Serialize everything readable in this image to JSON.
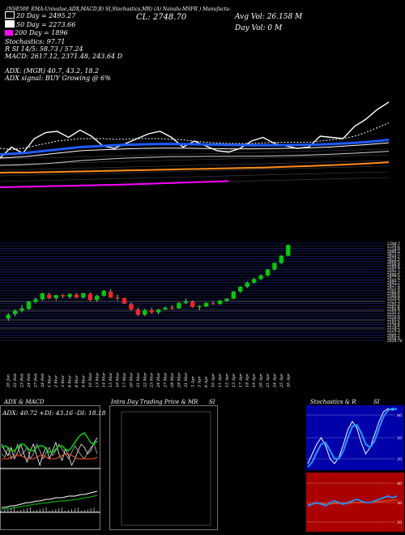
{
  "header": {
    "topline": "(NSE500_EMA:Univalue,ADX,MACD,B) SI,Stochastics,MR) (A) Nanalu-MSFR ) Manufactu-",
    "cl": "CL: 2748.70",
    "avg_vol": "Avg Vol: 26.158  M",
    "day_vol": "Day Vol: 0  M"
  },
  "ma_legend": [
    {
      "label": "20  Day = 2495.27",
      "color": "#ffffff"
    },
    {
      "label": "50  Day = 2273.66",
      "color": "#ffffff"
    },
    {
      "label": "200  Day = 1896",
      "color": "#ff00ff"
    }
  ],
  "indicator_lines": [
    "Stochastics: 97.71",
    "R          SI 14/5: 58.73 / 57.24",
    "MACD: 2617.12, 2371.48, 243.64  D",
    "",
    "ADX:                      (MGR) 40.7, 43.2, 18.2",
    "ADX  signal:                         BUY Growing @ 6%"
  ],
  "colors": {
    "up": "#00cc00",
    "down": "#ff2222",
    "ma20": "#1e5bff",
    "ema": "#ff8c1a",
    "ma200": "#ff00ff",
    "stoch_bg": "#0000aa",
    "rsi_bg": "#aa0000"
  },
  "chart_data": [
    {
      "type": "candlestick",
      "title": "",
      "x": [
        "20 Jan",
        "22 Feb",
        "23 Feb",
        "24 Feb",
        "27 Feb",
        "28 Feb",
        "1 Mar",
        "2 Mar",
        "3 Mar",
        "6 Mar",
        "8 Mar",
        "9 Mar",
        "10 Mar",
        "13 Mar",
        "14 Mar",
        "15 Mar",
        "16 Mar",
        "17 Mar",
        "20 Mar",
        "21 Mar",
        "22 Mar",
        "23 Mar",
        "24 Mar",
        "27 Mar",
        "28 Mar",
        "29 Mar",
        "31 Mar",
        "3 Apr",
        "5 Apr",
        "6 Apr",
        "10 Apr",
        "11 Apr",
        "12 Apr",
        "13 Apr",
        "17 Apr",
        "18 Apr",
        "19 Apr",
        "20 Apr",
        "21 Apr",
        "24 Apr",
        "25 Apr",
        "26 Apr"
      ],
      "ohlc": [
        [
          2130,
          2175,
          2110,
          2160
        ],
        [
          2165,
          2205,
          2150,
          2195
        ],
        [
          2195,
          2240,
          2180,
          2215
        ],
        [
          2210,
          2275,
          2200,
          2270
        ],
        [
          2268,
          2305,
          2255,
          2290
        ],
        [
          2290,
          2345,
          2280,
          2340
        ],
        [
          2330,
          2345,
          2290,
          2300
        ],
        [
          2300,
          2330,
          2280,
          2325
        ],
        [
          2325,
          2335,
          2300,
          2315
        ],
        [
          2310,
          2340,
          2295,
          2335
        ],
        [
          2330,
          2340,
          2300,
          2305
        ],
        [
          2305,
          2345,
          2295,
          2340
        ],
        [
          2335,
          2345,
          2275,
          2285
        ],
        [
          2285,
          2330,
          2270,
          2320
        ],
        [
          2320,
          2370,
          2310,
          2360
        ],
        [
          2355,
          2375,
          2300,
          2305
        ],
        [
          2305,
          2330,
          2280,
          2300
        ],
        [
          2300,
          2305,
          2250,
          2255
        ],
        [
          2250,
          2265,
          2195,
          2205
        ],
        [
          2205,
          2220,
          2150,
          2160
        ],
        [
          2160,
          2210,
          2150,
          2200
        ],
        [
          2200,
          2220,
          2170,
          2180
        ],
        [
          2180,
          2210,
          2165,
          2205
        ],
        [
          2205,
          2230,
          2200,
          2220
        ],
        [
          2220,
          2240,
          2205,
          2215
        ],
        [
          2215,
          2265,
          2210,
          2260
        ],
        [
          2260,
          2295,
          2250,
          2275
        ],
        [
          2270,
          2280,
          2220,
          2225
        ],
        [
          2225,
          2240,
          2200,
          2235
        ],
        [
          2230,
          2265,
          2225,
          2260
        ],
        [
          2255,
          2275,
          2245,
          2250
        ],
        [
          2250,
          2285,
          2245,
          2280
        ],
        [
          2278,
          2300,
          2270,
          2295
        ],
        [
          2295,
          2360,
          2290,
          2355
        ],
        [
          2355,
          2400,
          2345,
          2395
        ],
        [
          2395,
          2440,
          2385,
          2430
        ],
        [
          2430,
          2470,
          2420,
          2460
        ],
        [
          2460,
          2500,
          2450,
          2490
        ],
        [
          2490,
          2545,
          2480,
          2540
        ],
        [
          2540,
          2600,
          2530,
          2595
        ],
        [
          2595,
          2660,
          2585,
          2655
        ],
        [
          2655,
          2750,
          2650,
          2745
        ]
      ],
      "price_labels": [
        "2749.7",
        "2736.2",
        "2714.9",
        "2698.2",
        "2671.7",
        "2644.2",
        "2625.3",
        "2609.5",
        "2588.9",
        "2560.4",
        "2542.7",
        "2521.3",
        "2498.5",
        "2477.2",
        "2460.7",
        "2442.2",
        "2427.3",
        "2411.4",
        "2392.6",
        "2366.8",
        "2340.4",
        "2326.6",
        "2313.3",
        "2291.3",
        "2287.6",
        "2266.4",
        "2253.3",
        "2231.1",
        "2220.9",
        "2205.0",
        "2183.4",
        "2176.6",
        "2159.2",
        "2124.3",
        "2111.7",
        "2095.2",
        "2058.3",
        "2024.78"
      ],
      "ylim": [
        2000,
        2760
      ]
    },
    {
      "type": "line",
      "title": "",
      "series": [
        {
          "name": "",
          "values": [
            2300,
            2390,
            2340,
            2460,
            2510,
            2520,
            2470,
            2530,
            2480,
            2400,
            2380,
            2420,
            2460,
            2500,
            2520,
            2470,
            2390,
            2440,
            2400,
            2360,
            2350,
            2380,
            2440,
            2470,
            2420,
            2400,
            2380,
            2390,
            2480,
            2470,
            2460,
            2560,
            2620,
            2700,
            2760
          ]
        },
        {
          "name": "",
          "values": [
            2380,
            2370,
            2380,
            2400,
            2420,
            2440,
            2450,
            2460,
            2460,
            2460,
            2455,
            2455,
            2460,
            2460,
            2460,
            2455,
            2450,
            2440,
            2430,
            2425,
            2420,
            2420,
            2420,
            2425,
            2430,
            2430,
            2430,
            2430,
            2440,
            2450,
            2460,
            2480,
            2510,
            2550,
            2590
          ]
        },
        {
          "name": "",
          "values": [
            2330,
            2335,
            2340,
            2350,
            2360,
            2370,
            2380,
            2390,
            2395,
            2400,
            2405,
            2410,
            2412,
            2414,
            2416,
            2416,
            2415,
            2414,
            2412,
            2410,
            2408,
            2407,
            2406,
            2406,
            2406,
            2407,
            2408,
            2410,
            2412,
            2416,
            2420,
            2425,
            2432,
            2440,
            2450
          ]
        },
        {
          "name": "",
          "values": [
            2300,
            2305,
            2310,
            2320,
            2330,
            2340,
            2350,
            2360,
            2365,
            2368,
            2372,
            2376,
            2378,
            2380,
            2382,
            2382,
            2381,
            2380,
            2378,
            2377,
            2376,
            2376,
            2376,
            2377,
            2378,
            2380,
            2382,
            2384,
            2387,
            2392,
            2398,
            2404,
            2410,
            2418,
            2426
          ]
        },
        {
          "name": "",
          "values": [
            2240,
            2242,
            2245,
            2250,
            2255,
            2262,
            2270,
            2278,
            2284,
            2290,
            2295,
            2300,
            2303,
            2306,
            2309,
            2311,
            2312,
            2313,
            2314,
            2314,
            2314,
            2315,
            2315,
            2316,
            2318,
            2320,
            2322,
            2325,
            2328,
            2332,
            2336,
            2340,
            2345,
            2350,
            2356
          ]
        },
        {
          "name": "",
          "values": [
            2180,
            2181,
            2182,
            2183,
            2184,
            2186,
            2188,
            2190,
            2192,
            2194,
            2196,
            2198,
            2200,
            2202,
            2204,
            2206,
            2208,
            2210,
            2212,
            2214,
            2216,
            2218,
            2220,
            2222,
            2225,
            2228,
            2231,
            2234,
            2238,
            2242,
            2246,
            2250,
            2255,
            2260,
            2266
          ]
        },
        {
          "name": "",
          "values": [
            2060,
            2062,
            2064,
            2066,
            2068,
            2070,
            2072,
            2074,
            2076,
            2078,
            2080,
            2083,
            2086,
            2089,
            2092,
            2095,
            2098,
            2101,
            2104,
            2107,
            2110,
            null,
            null,
            null,
            null,
            null,
            null,
            null,
            null,
            null,
            null,
            null,
            null,
            null,
            null
          ]
        }
      ],
      "ylim": [
        2000,
        2800
      ]
    }
  ],
  "panels": {
    "adx": {
      "title": "ADX  & MACD",
      "values_line": "ADX: 40.72  +DI: 43.16  -DI: 18.18"
    },
    "intraday": {
      "title": "Intra  Day Trading Price  & MR",
      "suffix": "SI"
    },
    "stoch": {
      "title": "Stochastics & R",
      "suffix": "SI",
      "labels": [
        "80",
        "50",
        "20"
      ],
      "rsi_labels": [
        "80",
        "50",
        "20"
      ]
    }
  }
}
